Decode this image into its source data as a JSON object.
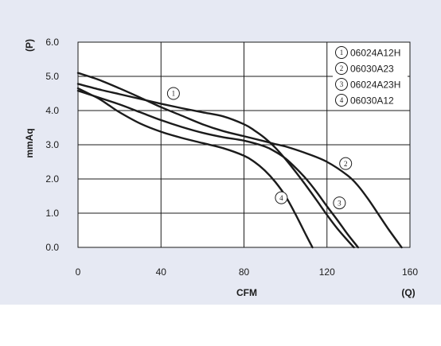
{
  "chart_data": {
    "type": "line",
    "xlabel": "CFM",
    "x_unit": "(Q)",
    "ylabel": "mmAq",
    "y_unit": "(P)",
    "xlim": [
      0,
      160
    ],
    "ylim": [
      0,
      6
    ],
    "x_ticks": [
      "0",
      "40",
      "80",
      "120",
      "160"
    ],
    "y_ticks": [
      "0.0",
      "1.0",
      "2.0",
      "3.0",
      "4.0",
      "5.0",
      "6.0"
    ],
    "grid": true,
    "legend_position": "top-right",
    "series": [
      {
        "marker": "1",
        "name": "06024A12H",
        "x": [
          0,
          10,
          20,
          30,
          40,
          50,
          60,
          70,
          80,
          85,
          90,
          95,
          100,
          105,
          110,
          115,
          120,
          125,
          130,
          133
        ],
        "y": [
          4.78,
          4.62,
          4.48,
          4.34,
          4.2,
          4.07,
          3.95,
          3.83,
          3.6,
          3.42,
          3.2,
          2.92,
          2.58,
          2.2,
          1.8,
          1.38,
          0.95,
          0.55,
          0.2,
          0
        ]
      },
      {
        "marker": "2",
        "name": "06030A23",
        "x": [
          0,
          10,
          20,
          30,
          40,
          50,
          60,
          70,
          80,
          90,
          95,
          100,
          110,
          120,
          130,
          135,
          140,
          145,
          150,
          156
        ],
        "y": [
          5.1,
          4.9,
          4.65,
          4.38,
          4.1,
          3.85,
          3.6,
          3.4,
          3.25,
          3.1,
          3.02,
          2.95,
          2.75,
          2.5,
          2.1,
          1.8,
          1.4,
          0.95,
          0.5,
          0
        ]
      },
      {
        "marker": "3",
        "name": "06024A23H",
        "x": [
          0,
          5,
          10,
          20,
          30,
          40,
          50,
          60,
          70,
          80,
          90,
          95,
          100,
          105,
          110,
          115,
          120,
          125,
          130,
          135
        ],
        "y": [
          4.58,
          4.48,
          4.38,
          4.18,
          3.95,
          3.72,
          3.52,
          3.35,
          3.22,
          3.12,
          2.95,
          2.8,
          2.6,
          2.32,
          2.0,
          1.62,
          1.2,
          0.8,
          0.38,
          0
        ]
      },
      {
        "marker": "4",
        "name": "06030A12",
        "x": [
          0,
          5,
          10,
          15,
          20,
          30,
          40,
          50,
          60,
          70,
          80,
          85,
          90,
          95,
          100,
          105,
          110,
          113
        ],
        "y": [
          4.65,
          4.5,
          4.35,
          4.15,
          3.95,
          3.62,
          3.38,
          3.2,
          3.05,
          2.9,
          2.68,
          2.5,
          2.25,
          1.92,
          1.5,
          0.95,
          0.35,
          0
        ]
      }
    ],
    "marker_positions": [
      {
        "label": "1",
        "x": 46,
        "y": 4.5
      },
      {
        "label": "2",
        "x": 129,
        "y": 2.45
      },
      {
        "label": "3",
        "x": 126,
        "y": 1.3
      },
      {
        "label": "4",
        "x": 98,
        "y": 1.45
      }
    ]
  }
}
